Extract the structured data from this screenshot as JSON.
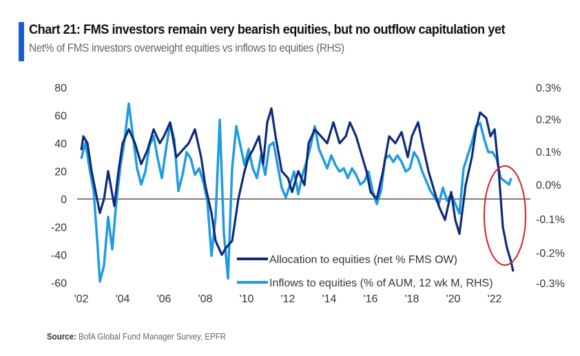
{
  "header": {
    "title": "Chart 21: FMS investors remain very bearish equities, but no outflow capitulation yet",
    "subtitle": "Net% of FMS investors overweight equities vs inflows to equities (RHS)"
  },
  "footer": {
    "source_label": "Source:",
    "source_text": "BofA Global Fund Manager Survey, EPFR"
  },
  "colors": {
    "accent": "#1a5bd0",
    "allocation": "#0d2a7a",
    "inflows": "#1f9be0",
    "highlight": "#d81e1e",
    "zero_line": "#333333"
  },
  "chart_data": {
    "type": "line",
    "title": "Chart 21: FMS investors remain very bearish equities, but no outflow capitulation yet",
    "subtitle": "Net% of FMS investors overweight equities vs inflows to equities (RHS)",
    "xlabel": "",
    "ylabel": "",
    "xlim": [
      2001.9,
      2024.3
    ],
    "ylim": [
      -60,
      80
    ],
    "y2lim": [
      -0.3,
      0.3
    ],
    "grid": false,
    "legend_position": "bottom-center",
    "x_tick_labels": [
      "'02",
      "'04",
      "'06",
      "'08",
      "'10",
      "'12",
      "'14",
      "'16",
      "'18",
      "'20",
      "'22"
    ],
    "x_ticks": [
      2002,
      2004,
      2006,
      2008,
      2010,
      2012,
      2014,
      2016,
      2018,
      2020,
      2022
    ],
    "y_tick_labels": [
      "80",
      "60",
      "40",
      "20",
      "0",
      "-20",
      "-40",
      "-60"
    ],
    "y_ticks": [
      80,
      60,
      40,
      20,
      0,
      -20,
      -40,
      -60
    ],
    "y2_tick_labels": [
      "0.3%",
      "0.2%",
      "0.1%",
      "0.0%",
      "-0.1%",
      "-0.2%",
      "-0.3%"
    ],
    "y2_ticks": [
      0.3,
      0.2,
      0.1,
      0.0,
      -0.1,
      -0.2,
      -0.3
    ],
    "annotations": [
      {
        "type": "ellipse",
        "text": "",
        "around": "2022 allocation drop"
      }
    ],
    "series": [
      {
        "name": "Allocation to equities (net % FMS OW)",
        "axis": "left",
        "x": [
          2002.0,
          2002.1,
          2002.3,
          2002.5,
          2002.7,
          2002.9,
          2003.1,
          2003.3,
          2003.6,
          2003.8,
          2004.0,
          2004.3,
          2004.6,
          2004.9,
          2005.2,
          2005.5,
          2005.8,
          2006.0,
          2006.3,
          2006.6,
          2006.9,
          2007.2,
          2007.5,
          2007.8,
          2008.0,
          2008.3,
          2008.5,
          2008.8,
          2009.0,
          2009.3,
          2009.6,
          2009.9,
          2010.1,
          2010.3,
          2010.6,
          2010.8,
          2011.0,
          2011.2,
          2011.4,
          2011.7,
          2012.0,
          2012.2,
          2012.5,
          2012.8,
          2013.0,
          2013.3,
          2013.6,
          2013.9,
          2014.2,
          2014.5,
          2014.8,
          2015.0,
          2015.3,
          2015.6,
          2015.8,
          2016.0,
          2016.3,
          2016.6,
          2016.9,
          2017.2,
          2017.5,
          2017.8,
          2018.0,
          2018.3,
          2018.5,
          2018.8,
          2019.0,
          2019.3,
          2019.6,
          2019.9,
          2020.1,
          2020.3,
          2020.6,
          2020.9,
          2021.1,
          2021.3,
          2021.6,
          2021.8,
          2022.0,
          2022.2,
          2022.4,
          2022.6,
          2022.8,
          2022.9
        ],
        "values": [
          35,
          45,
          40,
          20,
          5,
          -10,
          0,
          20,
          -5,
          20,
          40,
          50,
          40,
          25,
          35,
          50,
          40,
          45,
          55,
          30,
          35,
          40,
          50,
          30,
          10,
          -10,
          -30,
          -40,
          -35,
          -30,
          0,
          20,
          30,
          35,
          45,
          25,
          55,
          65,
          45,
          20,
          15,
          5,
          20,
          10,
          40,
          50,
          45,
          40,
          55,
          40,
          45,
          55,
          45,
          30,
          20,
          5,
          0,
          20,
          45,
          40,
          48,
          30,
          45,
          55,
          40,
          20,
          10,
          -5,
          -15,
          5,
          -15,
          -25,
          10,
          30,
          50,
          62,
          58,
          45,
          50,
          20,
          -20,
          -35,
          -45,
          -52
        ]
      },
      {
        "name": "Inflows to equities (% of AUM, 12 wk M, RHS)",
        "axis": "right",
        "x": [
          2002.0,
          2002.2,
          2002.4,
          2002.6,
          2002.8,
          2002.9,
          2003.1,
          2003.3,
          2003.5,
          2003.7,
          2003.9,
          2004.1,
          2004.3,
          2004.5,
          2004.7,
          2004.9,
          2005.1,
          2005.3,
          2005.5,
          2005.7,
          2005.9,
          2006.1,
          2006.3,
          2006.5,
          2006.7,
          2006.9,
          2007.1,
          2007.3,
          2007.5,
          2007.7,
          2007.9,
          2008.1,
          2008.3,
          2008.5,
          2008.7,
          2008.9,
          2009.1,
          2009.3,
          2009.5,
          2009.7,
          2009.9,
          2010.1,
          2010.3,
          2010.5,
          2010.7,
          2010.9,
          2011.1,
          2011.3,
          2011.5,
          2011.7,
          2011.9,
          2012.1,
          2012.3,
          2012.5,
          2012.7,
          2012.9,
          2013.1,
          2013.3,
          2013.5,
          2013.7,
          2013.9,
          2014.1,
          2014.3,
          2014.5,
          2014.7,
          2014.9,
          2015.1,
          2015.3,
          2015.5,
          2015.7,
          2015.9,
          2016.1,
          2016.3,
          2016.5,
          2016.7,
          2016.9,
          2017.1,
          2017.3,
          2017.5,
          2017.7,
          2017.9,
          2018.1,
          2018.3,
          2018.5,
          2018.7,
          2018.9,
          2019.1,
          2019.3,
          2019.5,
          2019.7,
          2019.9,
          2020.1,
          2020.3,
          2020.5,
          2020.7,
          2020.9,
          2021.1,
          2021.3,
          2021.5,
          2021.7,
          2021.9,
          2022.1,
          2022.3,
          2022.5,
          2022.7,
          2022.8
        ],
        "values": [
          0.08,
          0.13,
          0.05,
          -0.02,
          -0.2,
          -0.3,
          -0.25,
          -0.1,
          -0.2,
          -0.05,
          0.06,
          0.14,
          0.25,
          0.15,
          0.05,
          0.0,
          0.04,
          0.12,
          0.15,
          0.08,
          0.02,
          0.11,
          0.19,
          0.14,
          -0.02,
          0.03,
          0.1,
          0.08,
          0.03,
          0.05,
          0.01,
          -0.05,
          -0.22,
          -0.1,
          0.2,
          -0.15,
          -0.29,
          0.05,
          0.18,
          0.12,
          0.06,
          0.11,
          0.05,
          0.02,
          0.09,
          0.03,
          0.12,
          0.13,
          0.06,
          -0.01,
          -0.04,
          0.0,
          0.04,
          -0.03,
          0.03,
          0.07,
          0.12,
          0.18,
          0.11,
          0.08,
          0.05,
          0.09,
          0.06,
          0.04,
          0.05,
          0.02,
          0.05,
          0.03,
          0.0,
          0.01,
          0.04,
          -0.02,
          -0.06,
          -0.02,
          0.08,
          0.09,
          0.07,
          0.09,
          0.07,
          0.04,
          0.05,
          0.1,
          0.08,
          0.04,
          0.01,
          -0.02,
          -0.04,
          -0.06,
          -0.01,
          -0.05,
          -0.03,
          -0.06,
          -0.09,
          0.05,
          0.09,
          0.13,
          0.18,
          0.19,
          0.14,
          0.1,
          0.1,
          0.08,
          0.02,
          0.01,
          0.0,
          0.02
        ]
      }
    ]
  }
}
